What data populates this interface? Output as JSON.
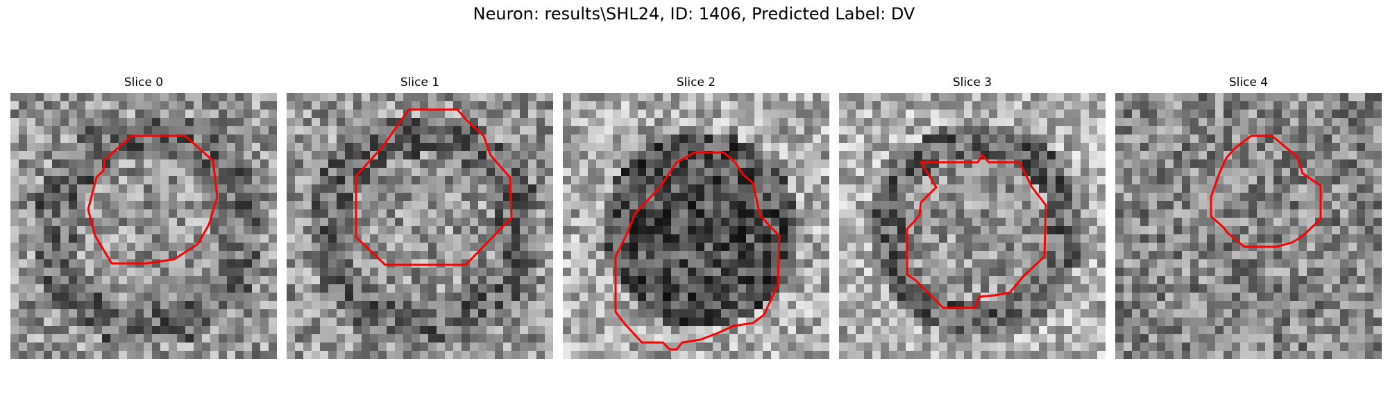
{
  "title": "Neuron: results\\SHL24, ID: 1406, Predicted Label: DV",
  "colors": {
    "contour": "#ff0000",
    "background": "#ffffff"
  },
  "panels": [
    {
      "label": "Slice 0"
    },
    {
      "label": "Slice 1"
    },
    {
      "label": "Slice 2"
    },
    {
      "label": "Slice 3"
    },
    {
      "label": "Slice 4"
    }
  ]
}
